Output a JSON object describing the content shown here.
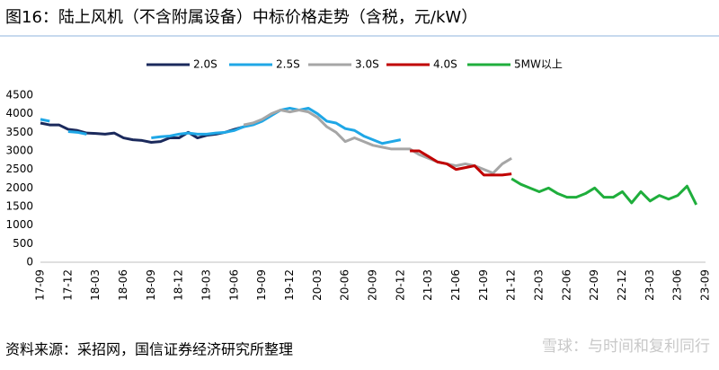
{
  "chart_data": {
    "type": "line",
    "title": "图16：陆上风机（不含附属设备）中标价格走势（含税，元/kW）",
    "categories": [
      "17-09",
      null,
      null,
      "17-12",
      null,
      null,
      "18-03",
      null,
      null,
      "18-06",
      null,
      null,
      "18-09",
      null,
      null,
      "18-12",
      null,
      null,
      "19-03",
      null,
      null,
      "19-06",
      null,
      null,
      "19-09",
      null,
      null,
      "19-12",
      null,
      null,
      "20-03",
      null,
      null,
      "20-06",
      null,
      null,
      "20-09",
      null,
      null,
      "20-12",
      null,
      null,
      "21-03",
      null,
      null,
      "21-06",
      null,
      null,
      "21-09",
      null,
      null,
      "21-12",
      null,
      null,
      "22-03",
      null,
      null,
      "22-06",
      null,
      null,
      "22-09",
      null,
      null,
      "22-12",
      null,
      null,
      "23-03",
      null,
      null,
      "23-06",
      null,
      null,
      "23-09"
    ],
    "series": [
      {
        "name": "2.0S",
        "color": "#1b2a5c",
        "values": [
          3750,
          3700,
          3700,
          3580,
          3550,
          3480,
          3470,
          3450,
          3480,
          3350,
          3300,
          3280,
          3230,
          3250,
          3350,
          3350,
          3500,
          3350,
          3420,
          3450,
          3500,
          3580,
          3650,
          null,
          null,
          null,
          null,
          null,
          null,
          null,
          null,
          null,
          null,
          null,
          null,
          null,
          null,
          null,
          null,
          null,
          null,
          null,
          null,
          null,
          null,
          null,
          null,
          null,
          null,
          null,
          null,
          null,
          null,
          null,
          null,
          null,
          null,
          null,
          null,
          null,
          null,
          null,
          null,
          null,
          null,
          null,
          null,
          null,
          null,
          null,
          null,
          null,
          null
        ]
      },
      {
        "name": "2.5S",
        "color": "#1fa7e6",
        "values": [
          3850,
          3800,
          null,
          3520,
          3500,
          3450,
          null,
          null,
          null,
          null,
          null,
          null,
          3350,
          3380,
          3400,
          3450,
          3480,
          3450,
          3450,
          3480,
          3500,
          3550,
          3650,
          3700,
          3800,
          3950,
          4100,
          4150,
          4100,
          4150,
          4000,
          3800,
          3750,
          3600,
          3550,
          3400,
          3300,
          3200,
          3250,
          3300,
          null,
          null,
          null,
          null,
          null,
          null,
          null,
          null,
          null,
          null,
          null,
          null,
          null,
          null,
          null,
          null,
          null,
          null,
          null,
          null,
          null,
          null,
          null,
          null,
          null,
          null,
          null,
          null,
          null,
          null,
          null,
          null,
          null
        ]
      },
      {
        "name": "3.0S",
        "color": "#a6a6a6",
        "values": [
          null,
          null,
          null,
          null,
          null,
          null,
          null,
          null,
          null,
          null,
          null,
          null,
          null,
          null,
          null,
          null,
          null,
          null,
          null,
          null,
          null,
          null,
          3700,
          3750,
          3850,
          4000,
          4100,
          4050,
          4100,
          4050,
          3900,
          3650,
          3500,
          3250,
          3350,
          3250,
          3150,
          3100,
          3050,
          3050,
          3050,
          2900,
          2800,
          2700,
          2650,
          2600,
          2650,
          2600,
          2500,
          2400,
          2650,
          2800,
          null,
          null,
          null,
          null,
          null,
          null,
          null,
          null,
          null,
          null,
          null,
          null,
          null,
          null,
          null,
          null,
          null,
          null,
          null,
          null,
          null
        ]
      },
      {
        "name": "4.0S",
        "color": "#c00000",
        "values": [
          null,
          null,
          null,
          null,
          null,
          null,
          null,
          null,
          null,
          null,
          null,
          null,
          null,
          null,
          null,
          null,
          null,
          null,
          null,
          null,
          null,
          null,
          null,
          null,
          null,
          null,
          null,
          null,
          null,
          null,
          null,
          null,
          null,
          null,
          null,
          null,
          null,
          null,
          null,
          null,
          3000,
          3000,
          2850,
          2700,
          2650,
          2500,
          2550,
          2600,
          2350,
          2350,
          2350,
          2380,
          null,
          null,
          null,
          null,
          null,
          null,
          null,
          null,
          null,
          null,
          null,
          null,
          null,
          null,
          null,
          null,
          null,
          null,
          null,
          null,
          null
        ]
      },
      {
        "name": "5MW以上",
        "color": "#1fae3c",
        "values": [
          null,
          null,
          null,
          null,
          null,
          null,
          null,
          null,
          null,
          null,
          null,
          null,
          null,
          null,
          null,
          null,
          null,
          null,
          null,
          null,
          null,
          null,
          null,
          null,
          null,
          null,
          null,
          null,
          null,
          null,
          null,
          null,
          null,
          null,
          null,
          null,
          null,
          null,
          null,
          null,
          null,
          null,
          null,
          null,
          null,
          null,
          null,
          null,
          null,
          null,
          null,
          2250,
          2100,
          2000,
          1900,
          2000,
          1850,
          1750,
          1750,
          1850,
          2000,
          1750,
          1750,
          1900,
          1600,
          1900,
          1650,
          1800,
          1700,
          1800,
          2050,
          1550,
          null
        ]
      }
    ],
    "ylim": [
      0,
      4500
    ],
    "yticks": [
      0,
      500,
      1000,
      1500,
      2000,
      2500,
      3000,
      3500,
      4000,
      4500
    ],
    "grid": false
  },
  "source": "资料来源：采招网，国信证券经济研究所整理",
  "watermark": "雪球：与时间和复利同行"
}
